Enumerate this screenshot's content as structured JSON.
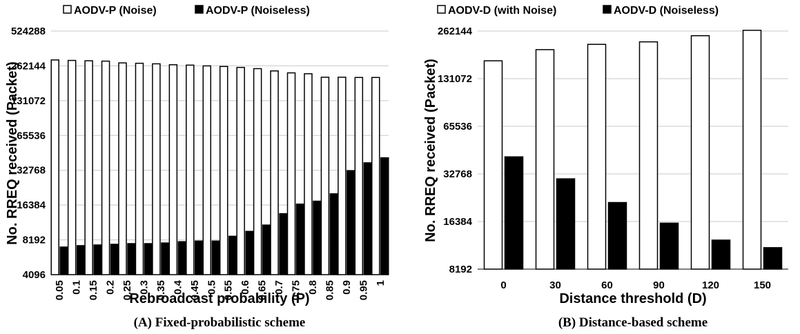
{
  "chart_data": [
    {
      "type": "bar",
      "caption": "(A) Fixed-probabilistic scheme",
      "xlabel": "Rebroadcast probability (P)",
      "ylabel": "No. RREQ received (Packet)",
      "yscale": "log2",
      "ylim": [
        4096,
        524288
      ],
      "yticks": [
        "4096",
        "8192",
        "16384",
        "32768",
        "65536",
        "131072",
        "262144",
        "524288"
      ],
      "grid": true,
      "legend_position": "top",
      "categories": [
        "0.05",
        "0.1",
        "0.15",
        "0.2",
        "0.25",
        "0.3",
        "0.35",
        "0.4",
        "0.45",
        "0.5",
        "0.55",
        "0.6",
        "0.65",
        "0.7",
        "0.75",
        "0.8",
        "0.85",
        "0.9",
        "0.95",
        "1"
      ],
      "series": [
        {
          "name": "AODV-P (Noise)",
          "fill": "#ffffff",
          "values": [
            295000,
            292000,
            290000,
            288000,
            278000,
            276000,
            273000,
            268000,
            266000,
            262000,
            259000,
            254000,
            248000,
            237000,
            228000,
            224000,
            209000,
            209000,
            208000,
            208000
          ]
        },
        {
          "name": "AODV-P (Noiseless)",
          "fill": "#000000",
          "values": [
            7100,
            7300,
            7400,
            7500,
            7600,
            7600,
            7700,
            7900,
            8000,
            8000,
            8800,
            9700,
            11000,
            13800,
            16700,
            17700,
            20500,
            32500,
            38000,
            42000
          ]
        }
      ]
    },
    {
      "type": "bar",
      "caption": "(B) Distance-based scheme",
      "xlabel": "Distance threshold (D)",
      "ylabel": "No. RREQ received (Packet)",
      "yscale": "log2",
      "ylim": [
        8192,
        262144
      ],
      "yticks": [
        "8192",
        "16384",
        "32768",
        "65536",
        "131072",
        "262144"
      ],
      "grid": true,
      "legend_position": "top",
      "categories": [
        "0",
        "30",
        "60",
        "90",
        "120",
        "150"
      ],
      "series": [
        {
          "name": "AODV-D (with Noise)",
          "fill": "#ffffff",
          "values": [
            170000,
            200000,
            216000,
            224000,
            245000,
            265000
          ]
        },
        {
          "name": "AODV-D (Noiseless)",
          "fill": "#000000",
          "values": [
            42000,
            30500,
            21600,
            16000,
            12500,
            11200
          ]
        }
      ]
    }
  ]
}
